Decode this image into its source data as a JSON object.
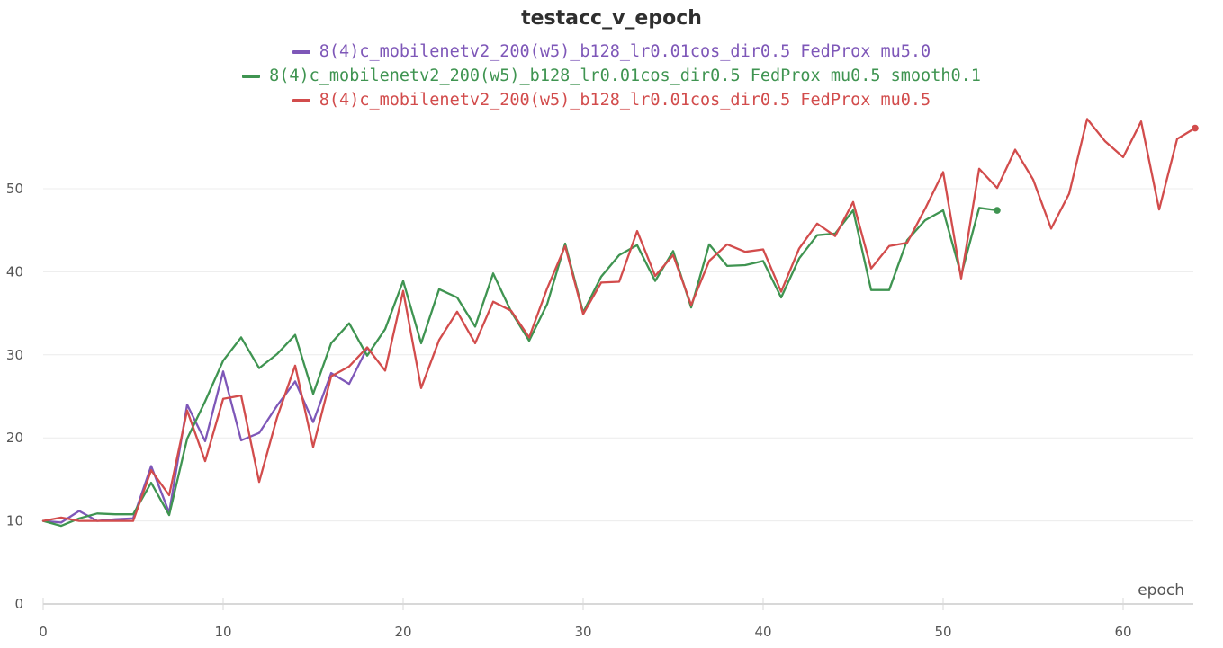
{
  "chart_data": {
    "type": "line",
    "title": "testacc_v_epoch",
    "xlabel": "epoch",
    "ylabel": "",
    "xlim": [
      0,
      64
    ],
    "ylim": [
      0,
      60
    ],
    "x_ticks": [
      0,
      10,
      20,
      30,
      40,
      50,
      60
    ],
    "y_ticks": [
      0,
      10,
      20,
      30,
      40,
      50
    ],
    "grid": "horizontal",
    "legend_placement": "top-center",
    "series": [
      {
        "name": "8(4)c_mobilenetv2_200(w5)_b128_lr0.01cos_dir0.5 FedProx mu5.0",
        "color": "#7e57b8",
        "x": [
          0,
          1,
          2,
          3,
          4,
          5,
          6,
          7,
          8,
          9,
          10,
          11,
          12,
          13,
          14,
          15,
          16,
          17,
          18
        ],
        "y": [
          10.0,
          9.8,
          11.2,
          10.0,
          10.2,
          10.3,
          16.6,
          11.0,
          24.0,
          19.6,
          28.0,
          19.7,
          20.6,
          23.9,
          26.8,
          21.9,
          27.8,
          26.5,
          30.8
        ],
        "end_marker": false
      },
      {
        "name": "8(4)c_mobilenetv2_200(w5)_b128_lr0.01cos_dir0.5 FedProx mu0.5 smooth0.1",
        "color": "#3f9451",
        "x": [
          0,
          1,
          2,
          3,
          4,
          5,
          6,
          7,
          8,
          9,
          10,
          11,
          12,
          13,
          14,
          15,
          16,
          17,
          18,
          19,
          20,
          21,
          22,
          23,
          24,
          25,
          26,
          27,
          28,
          29,
          30,
          31,
          32,
          33,
          34,
          35,
          36,
          37,
          38,
          39,
          40,
          41,
          42,
          43,
          44,
          45,
          46,
          47,
          48,
          49,
          50,
          51,
          52,
          53
        ],
        "y": [
          10.0,
          9.4,
          10.3,
          10.9,
          10.8,
          10.8,
          14.6,
          10.7,
          19.9,
          24.4,
          29.3,
          32.1,
          28.4,
          30.1,
          32.4,
          25.3,
          31.4,
          33.8,
          29.9,
          33.1,
          38.9,
          31.4,
          37.9,
          36.9,
          33.4,
          39.8,
          35.2,
          31.7,
          36.1,
          43.4,
          35.1,
          39.4,
          42.0,
          43.2,
          38.9,
          42.5,
          35.7,
          43.3,
          40.7,
          40.8,
          41.3,
          36.9,
          41.6,
          44.4,
          44.6,
          47.4,
          37.8,
          37.8,
          43.8,
          46.2,
          47.4,
          39.6,
          47.7,
          47.4
        ],
        "end_marker": true
      },
      {
        "name": "8(4)c_mobilenetv2_200(w5)_b128_lr0.01cos_dir0.5 FedProx mu0.5",
        "color": "#d24c4c",
        "x": [
          0,
          1,
          2,
          3,
          4,
          5,
          6,
          7,
          8,
          9,
          10,
          11,
          12,
          13,
          14,
          15,
          16,
          17,
          18,
          19,
          20,
          21,
          22,
          23,
          24,
          25,
          26,
          27,
          28,
          29,
          30,
          31,
          32,
          33,
          34,
          35,
          36,
          37,
          38,
          39,
          40,
          41,
          42,
          43,
          44,
          45,
          46,
          47,
          48,
          49,
          50,
          51,
          52,
          53,
          54,
          55,
          56,
          57,
          58,
          59,
          60,
          61,
          62,
          63,
          64
        ],
        "y": [
          10.0,
          10.4,
          10.0,
          10.0,
          10.0,
          10.0,
          16.1,
          13.1,
          23.3,
          17.2,
          24.7,
          25.1,
          14.7,
          22.5,
          28.7,
          18.9,
          27.4,
          28.6,
          30.9,
          28.1,
          37.7,
          26.0,
          31.8,
          35.2,
          31.4,
          36.4,
          35.3,
          32.1,
          38.0,
          43.1,
          34.9,
          38.7,
          38.8,
          44.9,
          39.5,
          42.0,
          36.0,
          41.3,
          43.3,
          42.4,
          42.7,
          37.6,
          42.8,
          45.8,
          44.3,
          48.4,
          40.4,
          43.1,
          43.5,
          47.6,
          52.0,
          39.2,
          52.4,
          50.1,
          54.7,
          51.1,
          45.2,
          49.4,
          58.4,
          55.7,
          53.8,
          58.1,
          47.5,
          56.0,
          57.3
        ],
        "end_marker": true
      }
    ]
  }
}
